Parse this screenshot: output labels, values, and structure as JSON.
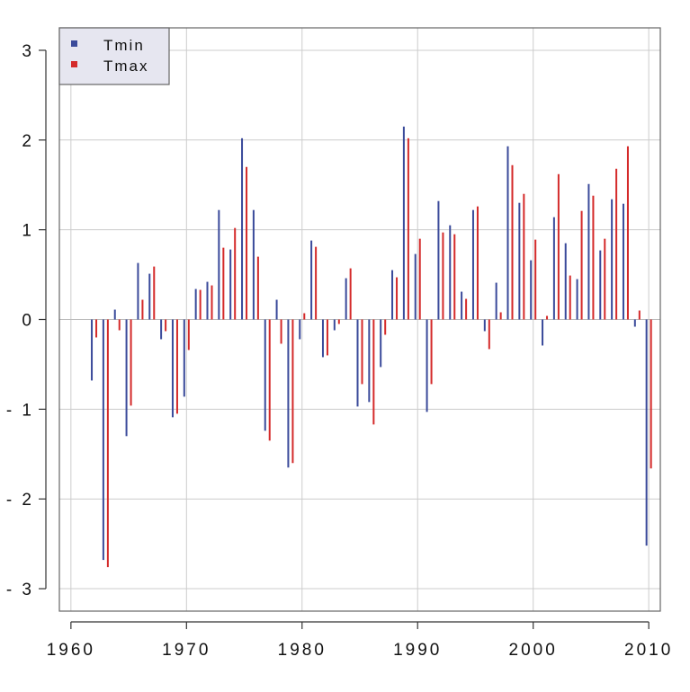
{
  "chart_data": {
    "type": "bar",
    "title": "",
    "xlabel": "",
    "ylabel": "",
    "xlim": [
      1959,
      2011
    ],
    "ylim": [
      -3.25,
      3.25
    ],
    "x_ticks": [
      1960,
      1970,
      1980,
      1990,
      2000,
      2010
    ],
    "y_ticks": [
      -3,
      -2,
      -1,
      0,
      1,
      2,
      3
    ],
    "grid": true,
    "legend_position": "top-left",
    "x": [
      1962,
      1963,
      1964,
      1965,
      1966,
      1967,
      1968,
      1969,
      1970,
      1971,
      1972,
      1973,
      1974,
      1975,
      1976,
      1977,
      1978,
      1979,
      1980,
      1981,
      1982,
      1983,
      1984,
      1985,
      1986,
      1987,
      1988,
      1989,
      1990,
      1991,
      1992,
      1993,
      1994,
      1995,
      1996,
      1997,
      1998,
      1999,
      2000,
      2001,
      2002,
      2003,
      2004,
      2005,
      2006,
      2007,
      2008,
      2009,
      2010
    ],
    "series": [
      {
        "name": "Tmin",
        "color": "#3a4a9a",
        "values": [
          -0.68,
          -2.68,
          0.11,
          -1.3,
          0.63,
          0.51,
          -0.22,
          -1.09,
          -0.86,
          0.34,
          0.42,
          1.22,
          0.78,
          2.02,
          1.22,
          -1.24,
          0.22,
          -1.65,
          -0.22,
          0.88,
          -0.42,
          -0.12,
          0.46,
          -0.97,
          -0.92,
          -0.53,
          0.55,
          2.15,
          0.73,
          -1.03,
          1.32,
          1.05,
          0.31,
          1.22,
          -0.13,
          0.41,
          1.93,
          1.3,
          0.66,
          -0.29,
          1.14,
          0.85,
          0.45,
          1.51,
          0.77,
          1.34,
          1.29,
          -0.08,
          -2.52
        ]
      },
      {
        "name": "Tmax",
        "color": "#d42a2a",
        "values": [
          -0.2,
          -2.76,
          -0.12,
          -0.96,
          0.22,
          0.59,
          -0.13,
          -1.05,
          -0.34,
          0.33,
          0.38,
          0.8,
          1.02,
          1.7,
          0.7,
          -1.35,
          -0.27,
          -1.6,
          0.07,
          0.81,
          -0.4,
          -0.05,
          0.57,
          -0.72,
          -1.17,
          -0.17,
          0.47,
          2.02,
          0.9,
          -0.72,
          0.97,
          0.95,
          0.23,
          1.26,
          -0.33,
          0.08,
          1.72,
          1.4,
          0.89,
          0.04,
          1.62,
          0.49,
          1.21,
          1.38,
          0.9,
          1.68,
          1.93,
          0.1,
          -1.66
        ]
      }
    ]
  }
}
